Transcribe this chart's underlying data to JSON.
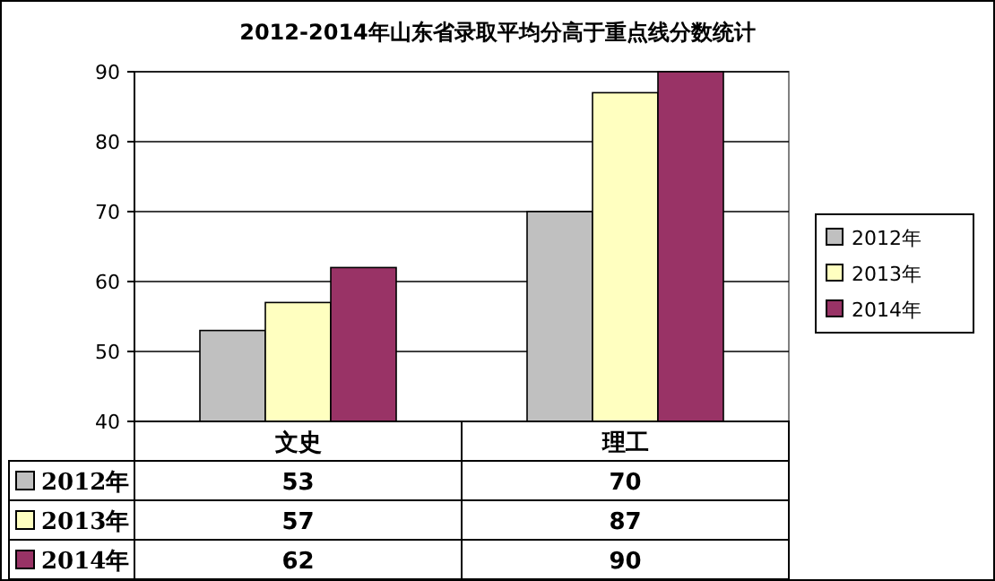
{
  "chart_data": {
    "type": "bar",
    "title": "2012-2014年山东省录取平均分高于重点线分数统计",
    "categories": [
      "文史",
      "理工"
    ],
    "series": [
      {
        "name": "2012年",
        "color": "#c0c0c0",
        "values": [
          53,
          70
        ]
      },
      {
        "name": "2013年",
        "color": "#ffffc0",
        "values": [
          57,
          87
        ]
      },
      {
        "name": "2014年",
        "color": "#993366",
        "values": [
          62,
          90
        ]
      }
    ],
    "ylim": [
      40,
      90
    ],
    "yticks": [
      40,
      50,
      60,
      70,
      80,
      90
    ],
    "grid": "y",
    "legend": "right",
    "data_labels": true
  }
}
